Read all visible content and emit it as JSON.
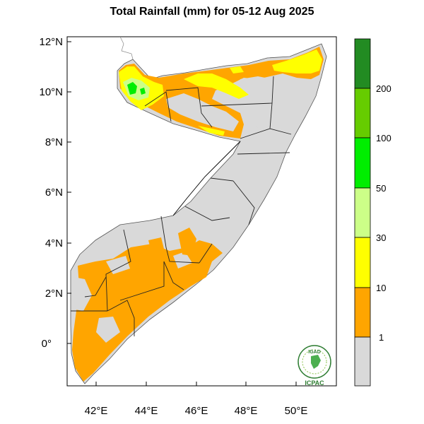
{
  "title": "Total Rainfall (mm) for 05-12 Aug 2025",
  "map": {
    "lat_ticks": [
      "12°N",
      "10°N",
      "8°N",
      "6°N",
      "4°N",
      "2°N",
      "0°"
    ],
    "lon_ticks": [
      "42°E",
      "44°E",
      "46°E",
      "48°E",
      "50°E"
    ],
    "lat_values": [
      12,
      10,
      8,
      6,
      4,
      2,
      0
    ],
    "lon_values": [
      42,
      44,
      46,
      48,
      50
    ],
    "lon_range": [
      41,
      51.8
    ],
    "lat_range": [
      -1.7,
      12.2
    ]
  },
  "legend": {
    "labels": [
      "1",
      "10",
      "30",
      "50",
      "100",
      "200"
    ],
    "colors": [
      "#d9d9d9",
      "#ffa500",
      "#ffff00",
      "#ccff88",
      "#00ee00",
      "#66cc00",
      "#228b22"
    ]
  },
  "logo": {
    "top": "IGAD",
    "bottom": "ICPAC"
  },
  "colors": {
    "no_rain": "#d9d9d9",
    "r1_10": "#ffa500",
    "r10_30": "#ffff00",
    "r30_50": "#ccff88",
    "r50_100": "#00ee00"
  }
}
